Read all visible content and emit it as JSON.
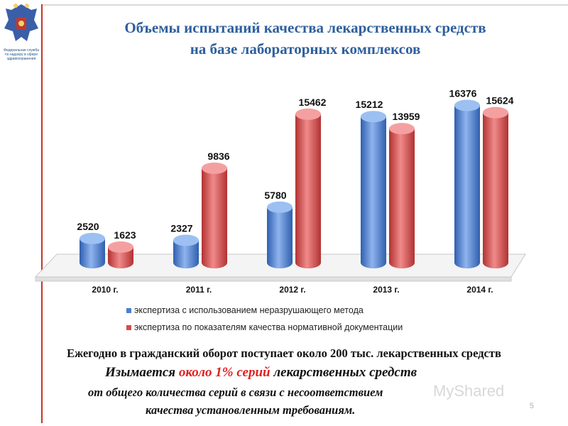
{
  "header": {
    "emblem_caption": [
      "Федеральная служба",
      "по надзору в сфере",
      "здравоохранения"
    ],
    "title_lines": [
      "Объемы испытаний качества лекарственных средств",
      "на базе лабораторных комплексов"
    ]
  },
  "colors": {
    "blue": "#4a7fd0",
    "red": "#d64a4a",
    "accent_line": "#c0392b",
    "title": "#2e5f9e"
  },
  "chart_data": {
    "type": "bar",
    "categories": [
      "2010 г.",
      "2011 г.",
      "2012 г.",
      "2013 г.",
      "2014 г."
    ],
    "series": [
      {
        "name": "экспертиза с использованием неразрушающего метода",
        "values": [
          2520,
          2327,
          5780,
          15212,
          16376
        ]
      },
      {
        "name": "экспертиза по показателям качества нормативной документации",
        "values": [
          1623,
          9836,
          15462,
          13959,
          15624
        ]
      }
    ],
    "ylim": [
      0,
      17000
    ],
    "grid": false,
    "legend_position": "bottom",
    "style": "3d-cylinder"
  },
  "notes": {
    "line1": "Ежегодно в гражданский оборот поступает около 200 тыс. лекарственных средств",
    "line2_pre": "Изымается ",
    "line2_hl": "около 1% серий",
    "line2_post": " лекарственных средств",
    "line3": "от общего количества серий в связи с несоответствием",
    "line4": "качества установленным требованиям."
  },
  "page_number": "5",
  "watermark": "MyShared"
}
